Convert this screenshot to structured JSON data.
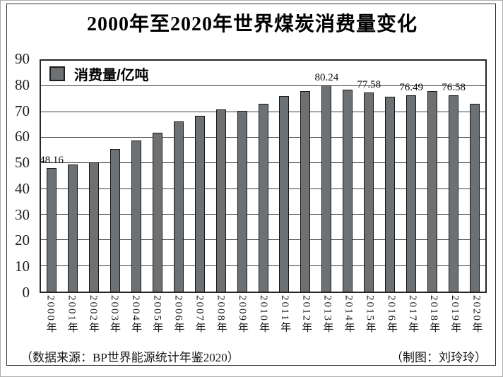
{
  "title": "2000年至2020年世界煤炭消费量变化",
  "legend": {
    "label": "消费量/亿吨"
  },
  "chart_data": {
    "type": "bar",
    "title": "2000年至2020年世界煤炭消费量变化",
    "unit": "亿吨",
    "categories": [
      "2000年",
      "2001年",
      "2002年",
      "2003年",
      "2004年",
      "2005年",
      "2006年",
      "2007年",
      "2008年",
      "2009年",
      "2010年",
      "2011年",
      "2012年",
      "2013年",
      "2014年",
      "2015年",
      "2016年",
      "2017年",
      "2018年",
      "2019年",
      "2020年"
    ],
    "values": [
      48.16,
      49.5,
      50.5,
      55.5,
      58.8,
      62.0,
      66.3,
      68.4,
      71.1,
      70.4,
      73.2,
      76.2,
      78.3,
      80.24,
      78.6,
      77.58,
      75.9,
      76.49,
      78.1,
      76.58,
      73.3
    ],
    "labeled_points": [
      {
        "index": 0,
        "text": "48.16"
      },
      {
        "index": 13,
        "text": "80.24"
      },
      {
        "index": 15,
        "text": "77.58"
      },
      {
        "index": 17,
        "text": "76.49"
      },
      {
        "index": 19,
        "text": "76.58"
      }
    ],
    "ylim": [
      0,
      90
    ],
    "yticks": [
      0,
      10,
      20,
      30,
      40,
      50,
      60,
      70,
      80,
      90
    ],
    "grid": true,
    "legend_entries": [
      "消费量/亿吨"
    ],
    "legend_position": "top-left-inside",
    "bar_color": "#6e7174",
    "xlabel": "",
    "ylabel": ""
  },
  "footer": {
    "source": "（数据来源：BP世界能源统计年鉴2020）",
    "credit": "（制图：刘玲玲）"
  }
}
